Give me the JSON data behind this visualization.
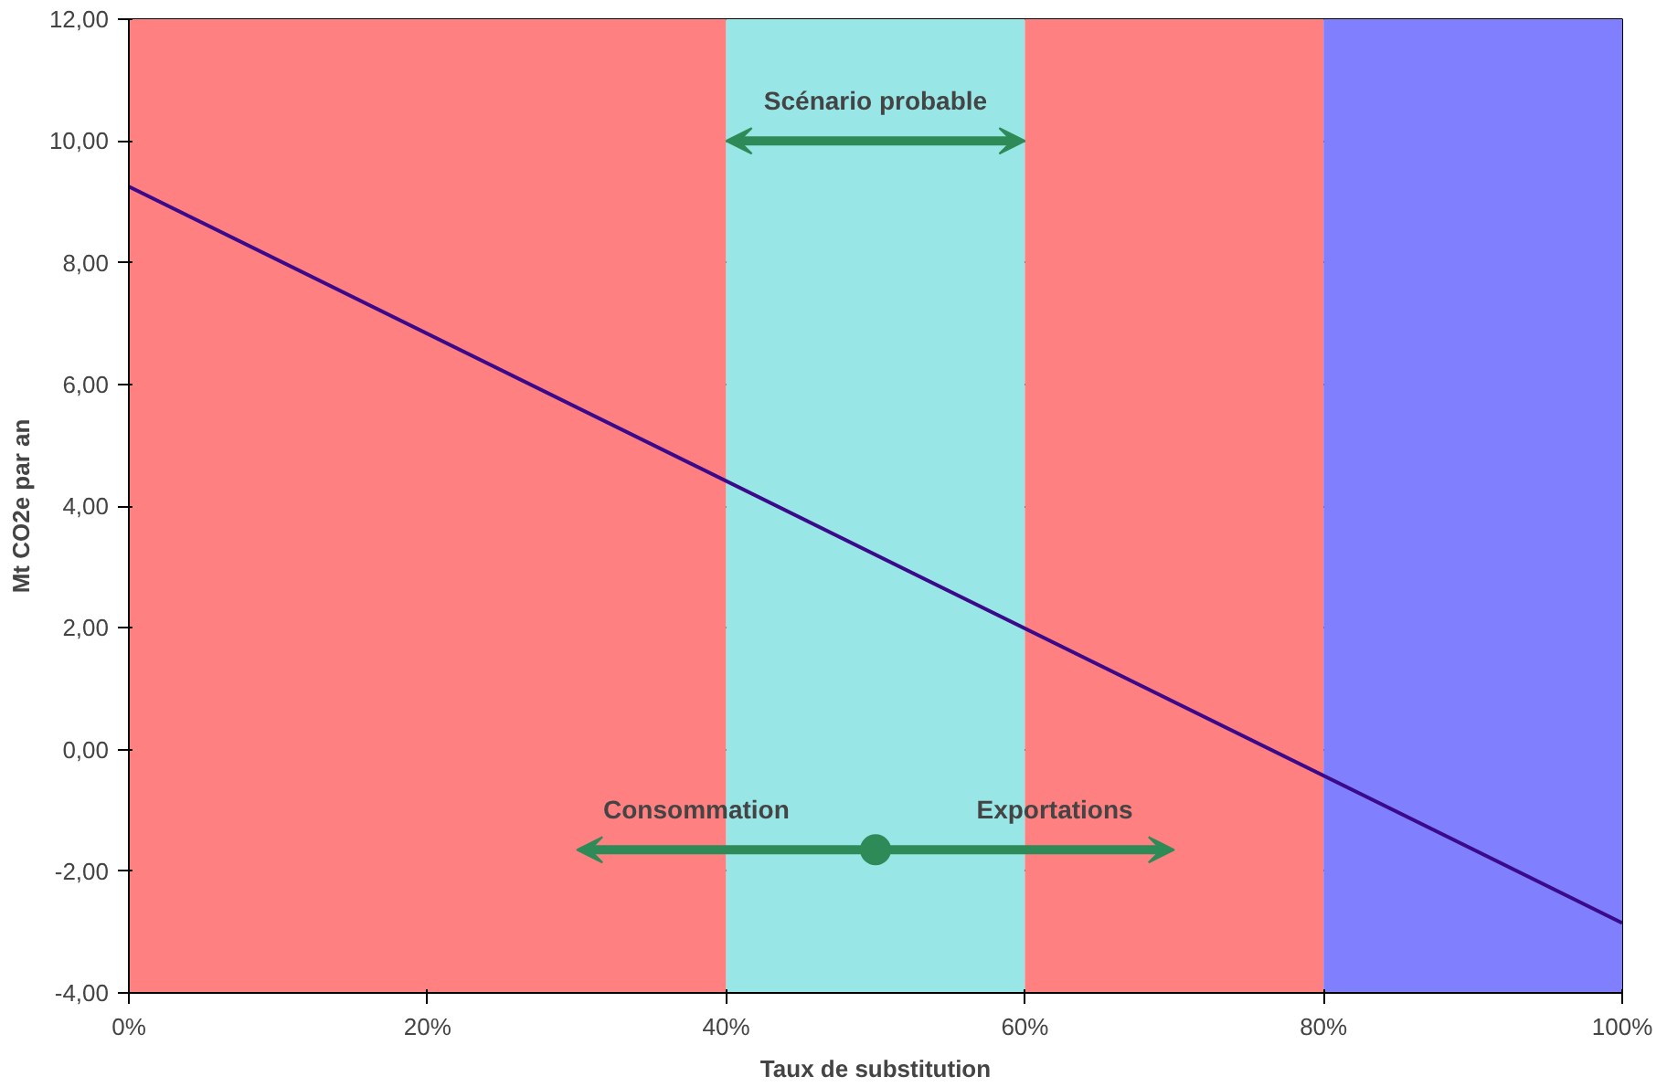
{
  "chart_data": {
    "type": "line",
    "xlabel": "Taux de substitution",
    "ylabel": "Mt CO2e par an",
    "x": [
      0,
      100
    ],
    "series": [
      {
        "color": "#3a0a8a",
        "values": [
          9.25,
          -2.85
        ]
      }
    ],
    "xlim": [
      0,
      100
    ],
    "ylim": [
      -4,
      12
    ],
    "xticks": [
      {
        "value": 0,
        "label": "0%"
      },
      {
        "value": 20,
        "label": "20%"
      },
      {
        "value": 40,
        "label": "40%"
      },
      {
        "value": 60,
        "label": "60%"
      },
      {
        "value": 80,
        "label": "80%"
      },
      {
        "value": 100,
        "label": "100%"
      }
    ],
    "yticks": [
      {
        "value": -4,
        "label": "-4,00"
      },
      {
        "value": -2,
        "label": "-2,00"
      },
      {
        "value": 0,
        "label": "0,00"
      },
      {
        "value": 2,
        "label": "2,00"
      },
      {
        "value": 4,
        "label": "4,00"
      },
      {
        "value": 6,
        "label": "6,00"
      },
      {
        "value": 8,
        "label": "8,00"
      },
      {
        "value": 10,
        "label": "10,00"
      },
      {
        "value": 12,
        "label": "12,00"
      }
    ],
    "bands": [
      {
        "axis": "x",
        "from": 0,
        "to": 40,
        "color": "#ff8080"
      },
      {
        "axis": "x",
        "from": 40,
        "to": 60,
        "color": "#99e6e6",
        "label": "Scénario probable"
      },
      {
        "axis": "x",
        "from": 60,
        "to": 80,
        "color": "#ff8080"
      },
      {
        "axis": "x",
        "from": 80,
        "to": 100,
        "color": "#8080ff"
      }
    ],
    "annotations": [
      "Consommation",
      "Exportations"
    ],
    "grid": "y",
    "marker": "none",
    "line_style": "solid"
  }
}
